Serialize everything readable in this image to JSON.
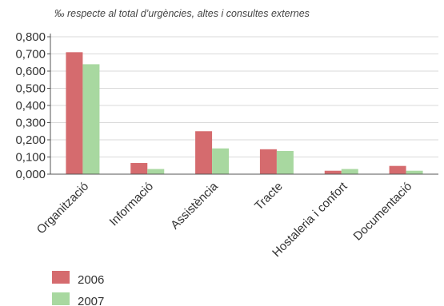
{
  "chart_data": {
    "type": "bar",
    "subtitle": "‰ respecte al total d’urgències, altes i consultes externes",
    "xlabel": "",
    "ylabel": "",
    "ylim": [
      0,
      0.8
    ],
    "yticks": [
      "0,000",
      "0,100",
      "0,200",
      "0,300",
      "0,400",
      "0,500",
      "0,600",
      "0,700",
      "0,800"
    ],
    "grid": true,
    "legend_position": "bottom-left",
    "categories": [
      "Organització",
      "Informació",
      "Assistència",
      "Tracte",
      "Hostaleria i confort",
      "Documentació"
    ],
    "series": [
      {
        "name": "2006",
        "color": "#d56b6e",
        "values": [
          0.71,
          0.065,
          0.25,
          0.145,
          0.02,
          0.048
        ]
      },
      {
        "name": "2007",
        "color": "#a8d8a0",
        "values": [
          0.64,
          0.03,
          0.15,
          0.135,
          0.03,
          0.02
        ]
      }
    ]
  },
  "colors": {
    "grid": "#d9d9d9",
    "axis": "#555555",
    "text": "#333333"
  }
}
